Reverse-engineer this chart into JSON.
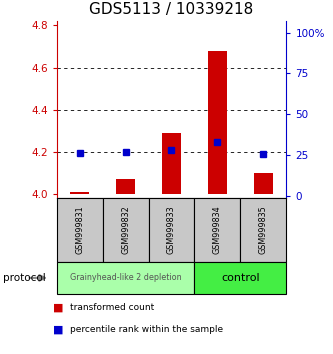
{
  "title": "GDS5113 / 10339218",
  "samples": [
    "GSM999831",
    "GSM999832",
    "GSM999833",
    "GSM999834",
    "GSM999835"
  ],
  "red_bars": [
    4.01,
    4.07,
    4.29,
    4.68,
    4.1
  ],
  "blue_markers": [
    26.5,
    27.0,
    28.0,
    33.0,
    25.5
  ],
  "red_bar_base": 4.0,
  "ylim_left": [
    3.98,
    4.82
  ],
  "ylim_right": [
    -1.5,
    107
  ],
  "yticks_left": [
    4.0,
    4.2,
    4.4,
    4.6,
    4.8
  ],
  "yticks_right": [
    0,
    25,
    50,
    75,
    100
  ],
  "ytick_labels_right": [
    "0",
    "25",
    "50",
    "75",
    "100%"
  ],
  "red_color": "#cc0000",
  "blue_color": "#0000cc",
  "group1_label": "Grainyhead-like 2 depletion",
  "group1_color": "#aaffaa",
  "group1_n": 3,
  "group2_label": "control",
  "group2_color": "#44ee44",
  "group2_n": 2,
  "protocol_label": "protocol",
  "legend_red_label": "transformed count",
  "legend_blue_label": "percentile rank within the sample",
  "sample_box_color": "#c8c8c8",
  "grid_color": "#888888",
  "title_fontsize": 11,
  "tick_fontsize": 7.5,
  "bar_width": 0.4
}
